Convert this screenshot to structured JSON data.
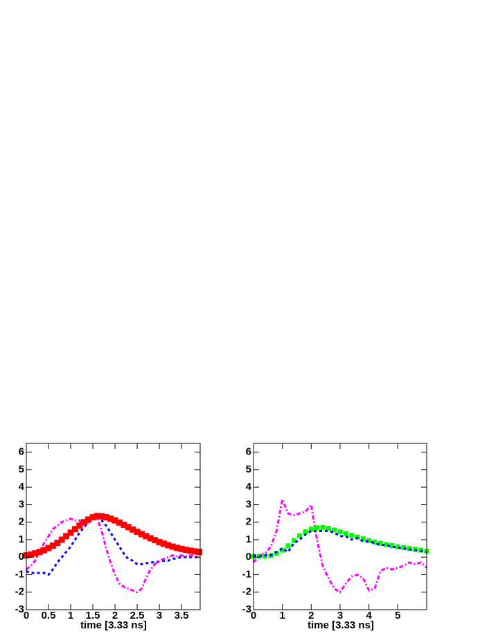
{
  "chart_data": [
    {
      "type": "line",
      "x_label": "time [3.33 ns]",
      "x": [
        0,
        0.1,
        0.2,
        0.3,
        0.4,
        0.5,
        0.6,
        0.7,
        0.8,
        0.9,
        1.0,
        1.1,
        1.2,
        1.3,
        1.4,
        1.5,
        1.6,
        1.7,
        1.8,
        1.9,
        2.0,
        2.1,
        2.2,
        2.3,
        2.4,
        2.5,
        2.6,
        2.7,
        2.8,
        2.9,
        3.0,
        3.1,
        3.2,
        3.3,
        3.4,
        3.5,
        3.6,
        3.7,
        3.8,
        3.9
      ],
      "series": [
        {
          "color": "#0000ff",
          "style": "dashed",
          "values": [
            -0.8,
            -0.9,
            -0.9,
            -0.9,
            -0.9,
            -1.0,
            -0.7,
            -0.3,
            0,
            0.3,
            0.6,
            1.0,
            1.4,
            1.7,
            2.0,
            2.3,
            2.3,
            2.1,
            1.8,
            1.4,
            1.0,
            0.6,
            0.2,
            -0.1,
            -0.2,
            -0.4,
            -0.4,
            -0.35,
            -0.3,
            -0.3,
            -0.25,
            -0.2,
            -0.2,
            -0.1,
            -0.05,
            0,
            0,
            0,
            0,
            0
          ]
        },
        {
          "color": "#ff00ff",
          "style": "dashdot",
          "values": [
            -0.7,
            -0.5,
            -0.2,
            0.3,
            0.8,
            1.2,
            1.6,
            1.8,
            2.0,
            2.1,
            2.2,
            2.1,
            2.1,
            1.8,
            2.0,
            2.3,
            2.2,
            1.5,
            0.5,
            -0.3,
            -1.0,
            -1.5,
            -1.7,
            -1.8,
            -1.9,
            -2.0,
            -1.8,
            -1.2,
            -0.7,
            -0.4,
            -0.2,
            -0.1,
            0,
            0.1,
            0.05,
            0.1,
            0.05,
            0.1,
            0.05,
            0
          ]
        },
        {
          "color": "#ff0000",
          "style": "markers",
          "values": [
            0.1,
            0.15,
            0.22,
            0.3,
            0.4,
            0.52,
            0.66,
            0.82,
            1.0,
            1.2,
            1.4,
            1.6,
            1.8,
            2.0,
            2.15,
            2.28,
            2.35,
            2.33,
            2.28,
            2.2,
            2.1,
            1.98,
            1.85,
            1.72,
            1.58,
            1.45,
            1.32,
            1.2,
            1.08,
            0.97,
            0.86,
            0.77,
            0.68,
            0.6,
            0.53,
            0.47,
            0.42,
            0.37,
            0.33,
            0.3
          ]
        }
      ],
      "xlim": [
        0,
        3.92
      ],
      "ylim": [
        -3,
        6.5
      ],
      "xticks": [
        0,
        0.5,
        1,
        1.5,
        2,
        2.5,
        3,
        3.5
      ],
      "yticks": [
        -3,
        -2,
        -1,
        0,
        1,
        2,
        3,
        4,
        5,
        6
      ]
    },
    {
      "type": "line",
      "x_label": "time [3.33 ns]",
      "x": [
        0,
        0.2,
        0.4,
        0.6,
        0.8,
        1.0,
        1.2,
        1.4,
        1.6,
        1.8,
        2.0,
        2.2,
        2.4,
        2.6,
        2.8,
        3.0,
        3.2,
        3.4,
        3.6,
        3.8,
        4.0,
        4.2,
        4.4,
        4.6,
        4.8,
        5.0,
        5.2,
        5.4,
        5.6,
        5.8,
        6.0
      ],
      "series": [
        {
          "color": "#ff00ff",
          "style": "dashdot",
          "values": [
            -0.3,
            0.1,
            0.2,
            0.6,
            1.5,
            3.3,
            2.5,
            2.4,
            2.5,
            2.6,
            3.0,
            1.0,
            -0.5,
            -1.2,
            -1.8,
            -2.0,
            -1.5,
            -1.1,
            -1.0,
            -1.2,
            -1.9,
            -1.8,
            -0.8,
            -0.6,
            -0.7,
            -0.6,
            -0.5,
            -0.3,
            -0.4,
            -0.3,
            -0.6
          ]
        },
        {
          "color": "#00ff00",
          "style": "markers",
          "values": [
            0.05,
            0.05,
            0.06,
            0.1,
            0.22,
            0.4,
            0.65,
            0.95,
            1.22,
            1.45,
            1.6,
            1.68,
            1.7,
            1.65,
            1.55,
            1.45,
            1.35,
            1.25,
            1.15,
            1.05,
            0.95,
            0.87,
            0.79,
            0.72,
            0.66,
            0.6,
            0.55,
            0.5,
            0.45,
            0.4,
            0.35
          ]
        },
        {
          "color": "#0000ff",
          "style": "dashed",
          "values": [
            0.1,
            0.05,
            0.1,
            0.1,
            0.3,
            0.5,
            0.3,
            0.8,
            1.0,
            1.3,
            1.5,
            1.5,
            1.5,
            1.5,
            1.4,
            1.2,
            1.2,
            1.0,
            1.1,
            0.9,
            0.9,
            0.8,
            0.7,
            0.7,
            0.6,
            0.55,
            0.5,
            0.45,
            0.4,
            0.35,
            0.3
          ]
        }
      ],
      "xlim": [
        0,
        6
      ],
      "ylim": [
        -3,
        6.5
      ],
      "xticks": [
        0,
        1,
        2,
        3,
        4,
        5
      ],
      "yticks": [
        -3,
        -2,
        -1,
        0,
        1,
        2,
        3,
        4,
        5,
        6
      ]
    }
  ]
}
